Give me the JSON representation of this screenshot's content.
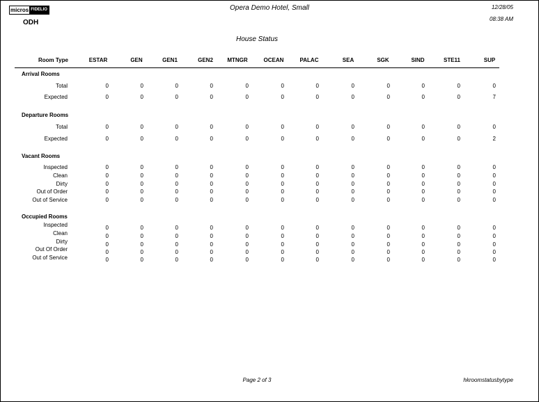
{
  "header": {
    "logo_left": "micros",
    "logo_right": "FIDELIO",
    "hotel": "Opera Demo Hotel, Small",
    "date": "12/28/05",
    "time": "08:38 AM",
    "property": "ODH",
    "report_title": "House Status"
  },
  "columns": {
    "first": "Room Type",
    "codes": [
      "ESTAR",
      "GEN",
      "GEN1",
      "GEN2",
      "MTNGR",
      "OCEAN",
      "PALAC",
      "SEA",
      "SGK",
      "SIND",
      "STE11",
      "SUP"
    ]
  },
  "sections": [
    {
      "title": "Arrival Rooms",
      "rows": [
        {
          "label": "Total",
          "values": [
            0,
            0,
            0,
            0,
            0,
            0,
            0,
            0,
            0,
            0,
            0,
            0
          ]
        },
        {
          "label": "Expected",
          "values": [
            0,
            0,
            0,
            0,
            0,
            0,
            0,
            0,
            0,
            0,
            0,
            7
          ]
        }
      ]
    },
    {
      "title": "Departure Rooms",
      "rows": [
        {
          "label": "Total",
          "values": [
            0,
            0,
            0,
            0,
            0,
            0,
            0,
            0,
            0,
            0,
            0,
            0
          ]
        },
        {
          "label": "Expected",
          "values": [
            0,
            0,
            0,
            0,
            0,
            0,
            0,
            0,
            0,
            0,
            0,
            2
          ]
        }
      ]
    },
    {
      "title": "Vacant Rooms",
      "rows": [
        {
          "label": "Inspected",
          "values": [
            0,
            0,
            0,
            0,
            0,
            0,
            0,
            0,
            0,
            0,
            0,
            0
          ]
        },
        {
          "label": "Clean",
          "values": [
            0,
            0,
            0,
            0,
            0,
            0,
            0,
            0,
            0,
            0,
            0,
            0
          ]
        },
        {
          "label": "Dirty",
          "values": [
            0,
            0,
            0,
            0,
            0,
            0,
            0,
            0,
            0,
            0,
            0,
            0
          ]
        },
        {
          "label": "Out of Order",
          "values": [
            0,
            0,
            0,
            0,
            0,
            0,
            0,
            0,
            0,
            0,
            0,
            0
          ]
        },
        {
          "label": "Out of Service",
          "values": [
            0,
            0,
            0,
            0,
            0,
            0,
            0,
            0,
            0,
            0,
            0,
            0
          ]
        }
      ]
    },
    {
      "title": "Occupied Rooms",
      "rows": [
        {
          "label": "Inspected",
          "values": [
            0,
            0,
            0,
            0,
            0,
            0,
            0,
            0,
            0,
            0,
            0,
            0
          ]
        },
        {
          "label": "Clean",
          "values": [
            0,
            0,
            0,
            0,
            0,
            0,
            0,
            0,
            0,
            0,
            0,
            0
          ]
        },
        {
          "label": "Dirty",
          "values": [
            0,
            0,
            0,
            0,
            0,
            0,
            0,
            0,
            0,
            0,
            0,
            0
          ]
        },
        {
          "label": "Out Of Order",
          "values": [
            0,
            0,
            0,
            0,
            0,
            0,
            0,
            0,
            0,
            0,
            0,
            0
          ]
        },
        {
          "label": "Out of Service",
          "values": [
            0,
            0,
            0,
            0,
            0,
            0,
            0,
            0,
            0,
            0,
            0,
            0
          ]
        }
      ]
    }
  ],
  "footer": {
    "page": "Page 2 of 3",
    "report_name": "hkroomstatusbytype"
  }
}
